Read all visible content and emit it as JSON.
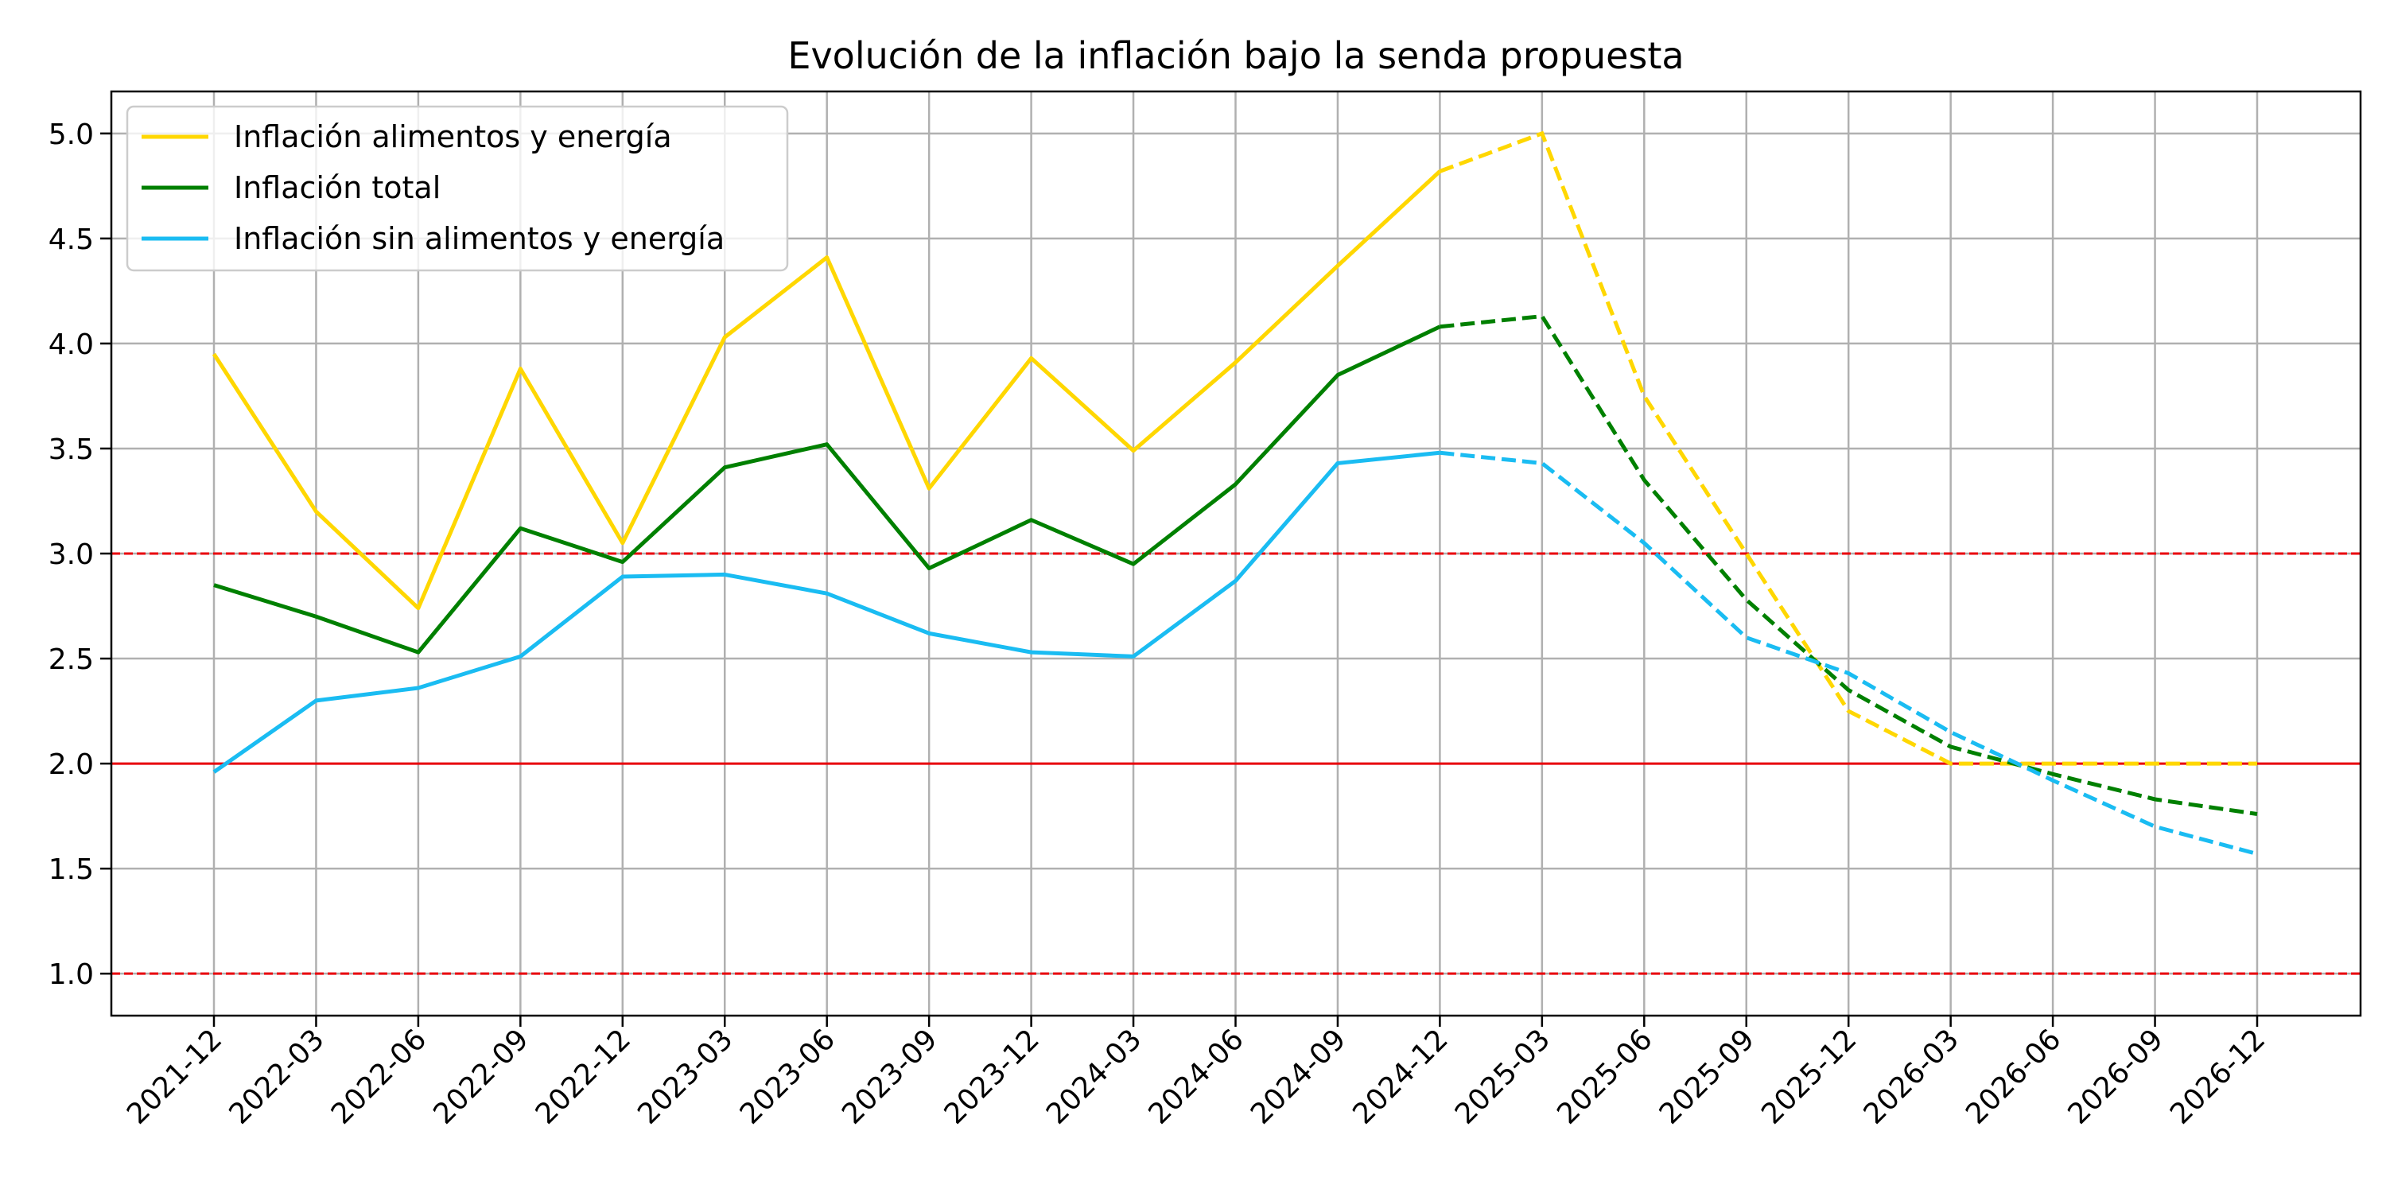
{
  "chart_data": {
    "type": "line",
    "title": "Evolución de la inflación bajo la senda propuesta",
    "xlabel": "",
    "ylabel": "",
    "categories": [
      "2021-12",
      "2022-03",
      "2022-06",
      "2022-09",
      "2022-12",
      "2023-03",
      "2023-06",
      "2023-09",
      "2023-12",
      "2024-03",
      "2024-06",
      "2024-09",
      "2024-12",
      "2025-03",
      "2025-06",
      "2025-09",
      "2025-12",
      "2026-03",
      "2026-06",
      "2026-09",
      "2026-12"
    ],
    "ylim": [
      0.8,
      5.2
    ],
    "yticks": [
      1.0,
      1.5,
      2.0,
      2.5,
      3.0,
      3.5,
      4.0,
      4.5,
      5.0
    ],
    "ytick_labels": [
      "1.0",
      "1.5",
      "2.0",
      "2.5",
      "3.0",
      "3.5",
      "4.0",
      "4.5",
      "5.0"
    ],
    "grid": true,
    "legend_position": "top-left",
    "observed_until_index": 12,
    "series": [
      {
        "name": "Inflación alimentos y energía",
        "color": "#FFD700",
        "values": [
          3.95,
          3.2,
          2.74,
          3.88,
          3.05,
          4.03,
          4.41,
          3.31,
          3.93,
          3.49,
          3.91,
          4.37,
          4.82,
          5.0,
          3.75,
          3.0,
          2.25,
          2.0,
          2.0,
          2.0,
          2.0
        ]
      },
      {
        "name": "Inflación total",
        "color": "#008000",
        "values": [
          2.85,
          2.7,
          2.53,
          3.12,
          2.96,
          3.41,
          3.52,
          2.93,
          3.16,
          2.95,
          3.33,
          3.85,
          4.08,
          4.13,
          3.35,
          2.78,
          2.35,
          2.08,
          1.95,
          1.83,
          1.76
        ]
      },
      {
        "name": "Inflación sin alimentos y energía",
        "color": "#1ABCF2",
        "values": [
          1.96,
          2.3,
          2.36,
          2.51,
          2.89,
          2.9,
          2.81,
          2.62,
          2.53,
          2.51,
          2.87,
          3.43,
          3.48,
          3.43,
          3.05,
          2.6,
          2.43,
          2.15,
          1.92,
          1.7,
          1.57
        ]
      }
    ],
    "reference_lines": [
      {
        "y": 2.0,
        "color": "#E8000B",
        "style": "solid"
      },
      {
        "y": 3.0,
        "color": "#E8000B",
        "style": "dashed"
      },
      {
        "y": 1.0,
        "color": "#E8000B",
        "style": "dashed"
      }
    ]
  }
}
